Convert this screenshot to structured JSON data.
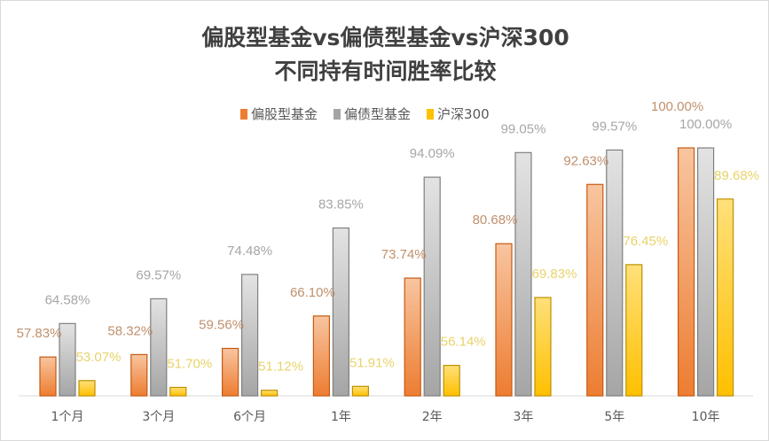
{
  "chart_data": {
    "type": "bar",
    "title": "偏股型基金vs偏债型基金vs沪深300",
    "subtitle": "不同持有时间胜率比较",
    "categories": [
      "1个月",
      "3个月",
      "6个月",
      "1年",
      "2年",
      "3年",
      "5年",
      "10年"
    ],
    "series": [
      {
        "name": "偏股型基金",
        "color": "#ed7d31",
        "values": [
          57.83,
          58.32,
          59.56,
          66.1,
          73.74,
          80.68,
          92.63,
          100.0
        ]
      },
      {
        "name": "偏债型基金",
        "color": "#a5a5a5",
        "values": [
          64.58,
          69.57,
          74.48,
          83.85,
          94.09,
          99.05,
          99.57,
          100.0
        ]
      },
      {
        "name": "沪深300",
        "color": "#ffc000",
        "values": [
          53.07,
          51.7,
          51.12,
          51.91,
          56.14,
          69.83,
          76.45,
          89.68
        ]
      }
    ],
    "label_colors": [
      "#c0906c",
      "#a6a6a6",
      "#e8d36a"
    ],
    "ylim": [
      50,
      100
    ],
    "grid": false,
    "legend": "top"
  }
}
